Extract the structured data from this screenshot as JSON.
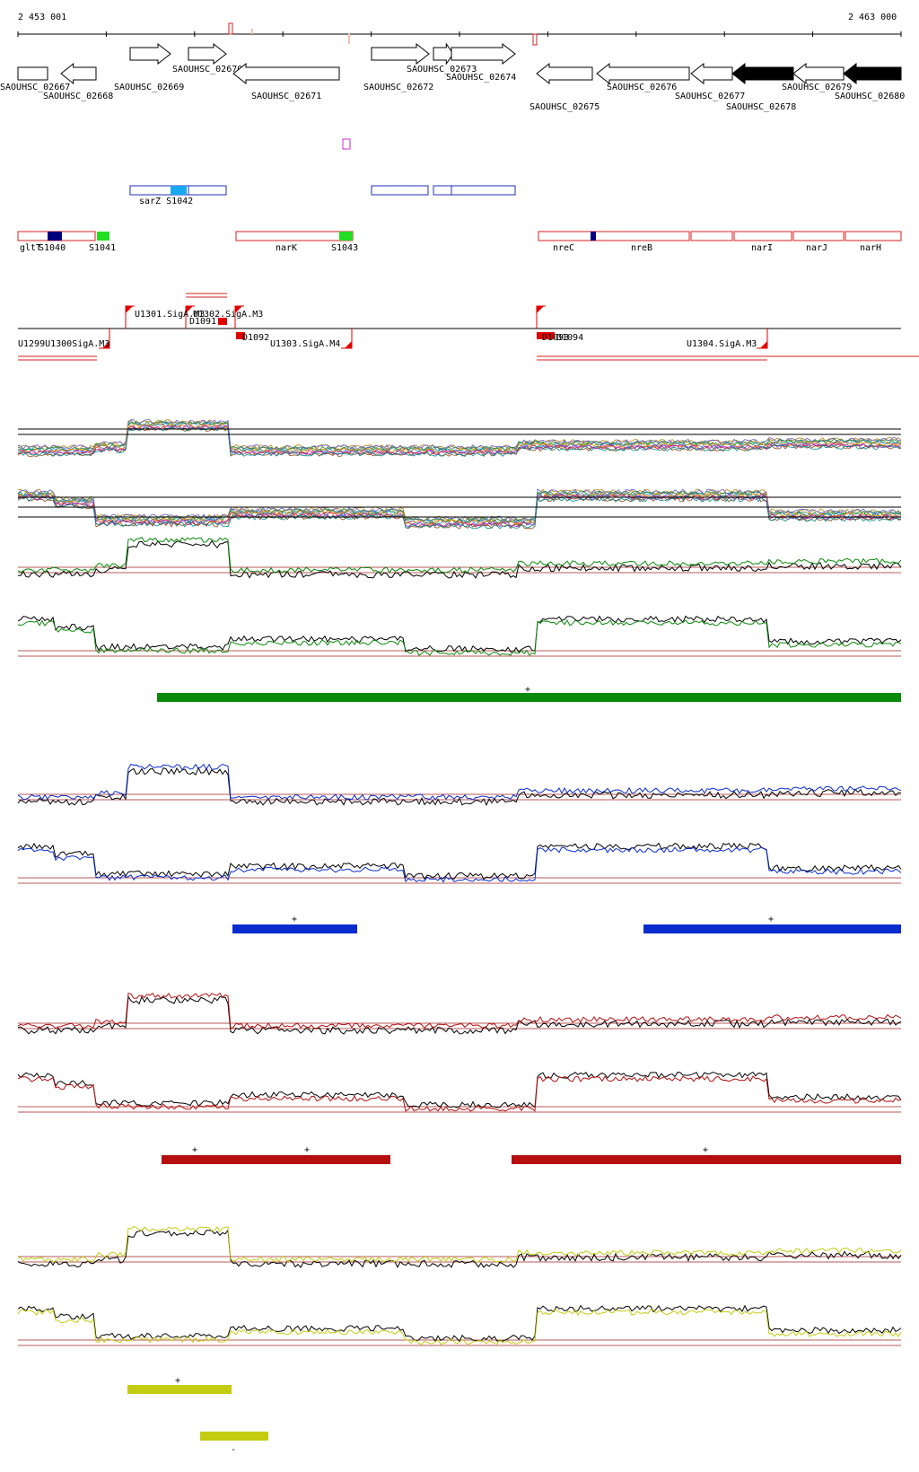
{
  "coordinates": {
    "start": "2 453 001",
    "end": "2 463 000"
  },
  "colors": {
    "gene_stroke": "#000000",
    "gene_fill_highlight": "#000000",
    "feature_blue": "#1f2fbf",
    "feature_red": "#d82020",
    "box_navy": "#00007f",
    "box_green": "#22dd22",
    "box_cyan": "#19a8f0",
    "magenta": "#d02ad0",
    "tss_red": "#e00000",
    "ref_line": "#a02020",
    "cond_green": "#0a8a0a",
    "cond_blue": "#0a2ccf",
    "cond_red": "#b50f0f",
    "cond_yellow": "#c4cc12"
  },
  "genes": [
    {
      "id": "SAOUHSC_02667"
    },
    {
      "id": "SAOUHSC_02668"
    },
    {
      "id": "SAOUHSC_02669"
    },
    {
      "id": "SAOUHSC_02670"
    },
    {
      "id": "SAOUHSC_02671"
    },
    {
      "id": "SAOUHSC_02672"
    },
    {
      "id": "SAOUHSC_02673"
    },
    {
      "id": "SAOUHSC_02674"
    },
    {
      "id": "SAOUHSC_02675"
    },
    {
      "id": "SAOUHSC_02676"
    },
    {
      "id": "SAOUHSC_02677"
    },
    {
      "id": "SAOUHSC_02678"
    },
    {
      "id": "SAOUHSC_02679"
    },
    {
      "id": "SAOUHSC_02680"
    }
  ],
  "blue_features": {
    "label": "sarZ S1042"
  },
  "red_features": [
    {
      "label": "gltT"
    },
    {
      "label": "S1040"
    },
    {
      "label": "S1041"
    },
    {
      "label": "narK"
    },
    {
      "label": "S1043"
    },
    {
      "label": "nreC"
    },
    {
      "label": "nreB"
    },
    {
      "label": "narI"
    },
    {
      "label": "narJ"
    },
    {
      "label": "narH"
    }
  ],
  "tss_labels": {
    "u1301": "U1301.SigA.M3",
    "u1302": "U1302.SigA.M3",
    "d1091": "D1091",
    "u1300": "U1299U1300SigA.M3",
    "d1092": "D1092",
    "u1303": "U1303.SigA.M4",
    "d1093": "D1093",
    "d1094": "D1094",
    "u1304": "U1304.SigA.M3"
  },
  "conditions": [
    {
      "name": "green",
      "plus_markers": [
        "+"
      ],
      "minus_markers": []
    },
    {
      "name": "blue",
      "plus_markers": [
        "+",
        "+"
      ],
      "minus_markers": []
    },
    {
      "name": "red",
      "plus_markers": [
        "+",
        "+",
        "+"
      ],
      "minus_markers": []
    },
    {
      "name": "yellow",
      "plus_markers": [
        "+"
      ],
      "minus_markers": [
        "-"
      ]
    }
  ]
}
